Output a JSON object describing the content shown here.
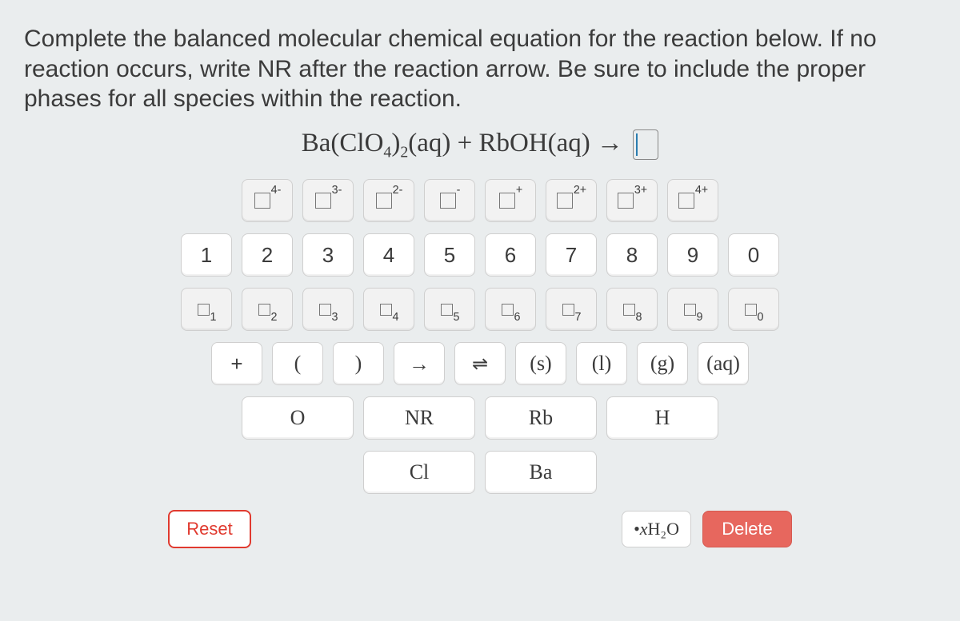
{
  "question": "Complete the balanced molecular chemical equation for the reaction below. If no reaction occurs, write NR after the reaction arrow. Be sure to include the proper phases for all species within the reaction.",
  "equation": {
    "lhs_html": "Ba(ClO<sub>4</sub>)<sub>2</sub>(aq) + RbOH(aq)",
    "arrow": "→"
  },
  "rows": {
    "charges": [
      "4-",
      "3-",
      "2-",
      "-",
      "+",
      "2+",
      "3+",
      "4+"
    ],
    "digits": [
      "1",
      "2",
      "3",
      "4",
      "5",
      "6",
      "7",
      "8",
      "9",
      "0"
    ],
    "subscripts": [
      "1",
      "2",
      "3",
      "4",
      "5",
      "6",
      "7",
      "8",
      "9",
      "0"
    ],
    "ops_phases": {
      "plus": "+",
      "lparen": "(",
      "rparen": ")",
      "arrow": "→",
      "dblarrow": "⇌",
      "phases": [
        "(s)",
        "(l)",
        "(g)",
        "(aq)"
      ]
    },
    "elements_row1": {
      "O": "O",
      "NR": "NR",
      "Rb": "Rb",
      "H": "H"
    },
    "elements_row2": {
      "Cl": "Cl",
      "Ba": "Ba"
    }
  },
  "footer": {
    "reset": "Reset",
    "hydrate_prefix": "• ",
    "hydrate_x": "x",
    "hydrate_formula": " H₂O",
    "delete": "Delete"
  },
  "colors": {
    "page_bg": "#eaedee",
    "key_bg": "#ffffff",
    "key_border": "#cfcfcf",
    "reset_color": "#e03a2f",
    "delete_bg": "#e7675e"
  }
}
